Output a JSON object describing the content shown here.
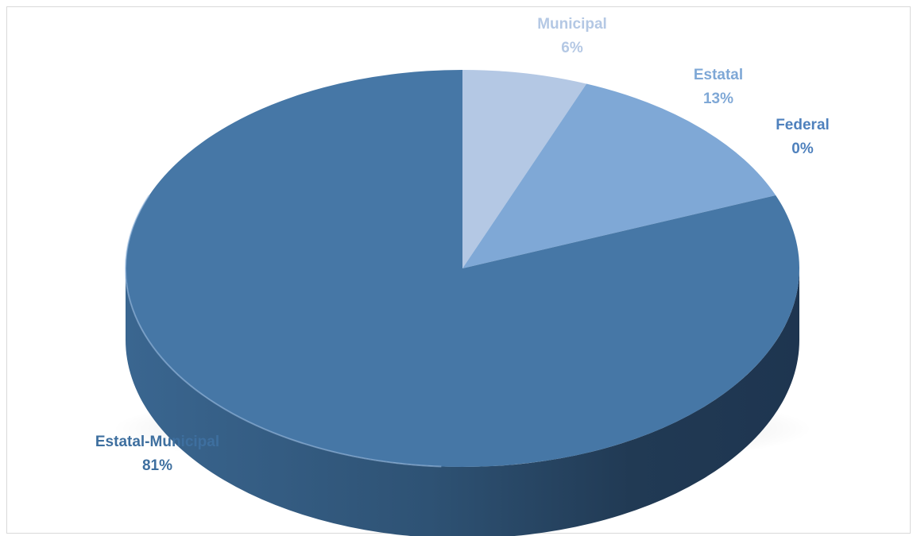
{
  "chart_data": {
    "type": "pie",
    "style": "3d",
    "title": "",
    "slices": [
      {
        "label": "Municipal",
        "value": 6,
        "value_label": "6%",
        "color": "#b4c8e4",
        "label_color": "#b4c8e4"
      },
      {
        "label": "Estatal",
        "value": 13,
        "value_label": "13%",
        "color": "#7fa8d6",
        "label_color": "#7fa8d6"
      },
      {
        "label": "Federal",
        "value": 0,
        "value_label": "0%",
        "color": "#5b8ec4",
        "label_color": "#4f81bd"
      },
      {
        "label": "Estatal-Municipal",
        "value": 81,
        "value_label": "81%",
        "color": "#4677a6",
        "label_color": "#3e6f9f"
      }
    ],
    "legend": "none",
    "start_angle": "12 o'clock",
    "direction": "clockwise"
  }
}
